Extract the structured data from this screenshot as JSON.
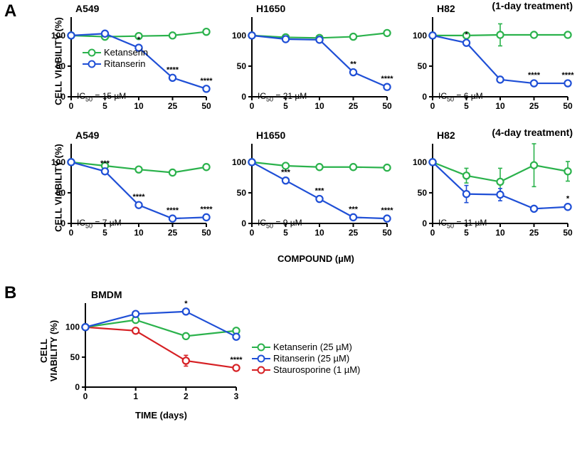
{
  "colors": {
    "ketanserin": "#2bb24c",
    "ritanserin": "#1f4fd6",
    "staurosporine": "#d62024",
    "axis": "#000000",
    "bg": "#ffffff"
  },
  "panelA": {
    "letter": "A",
    "y_label": "CELL VIABILITY (%)",
    "x_label": "COMPOUND (µM)",
    "x_ticks": [
      0,
      5,
      10,
      25,
      50
    ],
    "y_ticks": [
      0,
      50,
      100
    ],
    "row_labels": [
      "(1-day treatment)",
      "(4-day treatment)"
    ],
    "legend": [
      {
        "name": "Ketanserin",
        "color": "ketanserin"
      },
      {
        "name": "Ritanserin",
        "color": "ritanserin"
      }
    ],
    "charts": [
      {
        "title": "A549",
        "ic50": "15 µM",
        "ket": [
          100,
          98,
          99,
          100,
          106
        ],
        "rit": [
          100,
          103,
          80,
          31,
          13
        ],
        "sig": {
          "1": "",
          "2": "*",
          "3": "****",
          "4": "****"
        }
      },
      {
        "title": "H1650",
        "ic50": "21 µM",
        "ket": [
          100,
          97,
          96,
          98,
          104
        ],
        "rit": [
          100,
          94,
          93,
          40,
          16
        ],
        "sig": {
          "3": "**",
          "4": "****"
        }
      },
      {
        "title": "H82",
        "ic50": "6 µM",
        "ket": [
          100,
          100,
          101,
          101,
          101
        ],
        "ket_err": [
          0,
          0,
          18,
          0,
          0
        ],
        "rit": [
          100,
          88,
          28,
          22,
          22
        ],
        "sig": {
          "1": "*",
          "3": "****",
          "4": "****"
        }
      },
      {
        "title": "A549",
        "ic50": "7 µM",
        "ket": [
          100,
          94,
          88,
          83,
          92
        ],
        "rit": [
          100,
          85,
          30,
          8,
          10
        ],
        "sig": {
          "1": "***",
          "2": "****",
          "3": "****",
          "4": "****"
        }
      },
      {
        "title": "H1650",
        "ic50": "9 µM",
        "ket": [
          100,
          94,
          92,
          92,
          91
        ],
        "rit": [
          100,
          70,
          40,
          10,
          8
        ],
        "sig": {
          "1": "***",
          "2": "***",
          "3": "***",
          "4": "****"
        }
      },
      {
        "title": "H82",
        "ic50": "11 µM",
        "ket": [
          100,
          78,
          68,
          95,
          85
        ],
        "ket_err": [
          0,
          12,
          22,
          35,
          16
        ],
        "rit": [
          100,
          48,
          47,
          24,
          27
        ],
        "rit_err": [
          0,
          14,
          10,
          0,
          0
        ],
        "sig": {
          "4": "*"
        }
      }
    ]
  },
  "panelB": {
    "letter": "B",
    "title": "BMDM",
    "y_label": "CELL\nVIABILITY (%)",
    "x_label": "TIME (days)",
    "x_ticks": [
      0,
      1,
      2,
      3
    ],
    "y_ticks": [
      0,
      50,
      100
    ],
    "legend": [
      {
        "name": "Ketanserin (25 µM)",
        "color": "ketanserin"
      },
      {
        "name": "Ritanserin (25 µM)",
        "color": "ritanserin"
      },
      {
        "name": "Staurosporine (1 µM)",
        "color": "staurosporine"
      }
    ],
    "series": {
      "ket": [
        100,
        112,
        85,
        94
      ],
      "rit": [
        100,
        122,
        126,
        84
      ],
      "rit_sig": {
        "2": "*"
      },
      "sta": [
        100,
        94,
        44,
        32
      ],
      "sta_err": [
        0,
        0,
        9,
        0
      ],
      "sta_sig": {
        "3": "****"
      }
    }
  }
}
